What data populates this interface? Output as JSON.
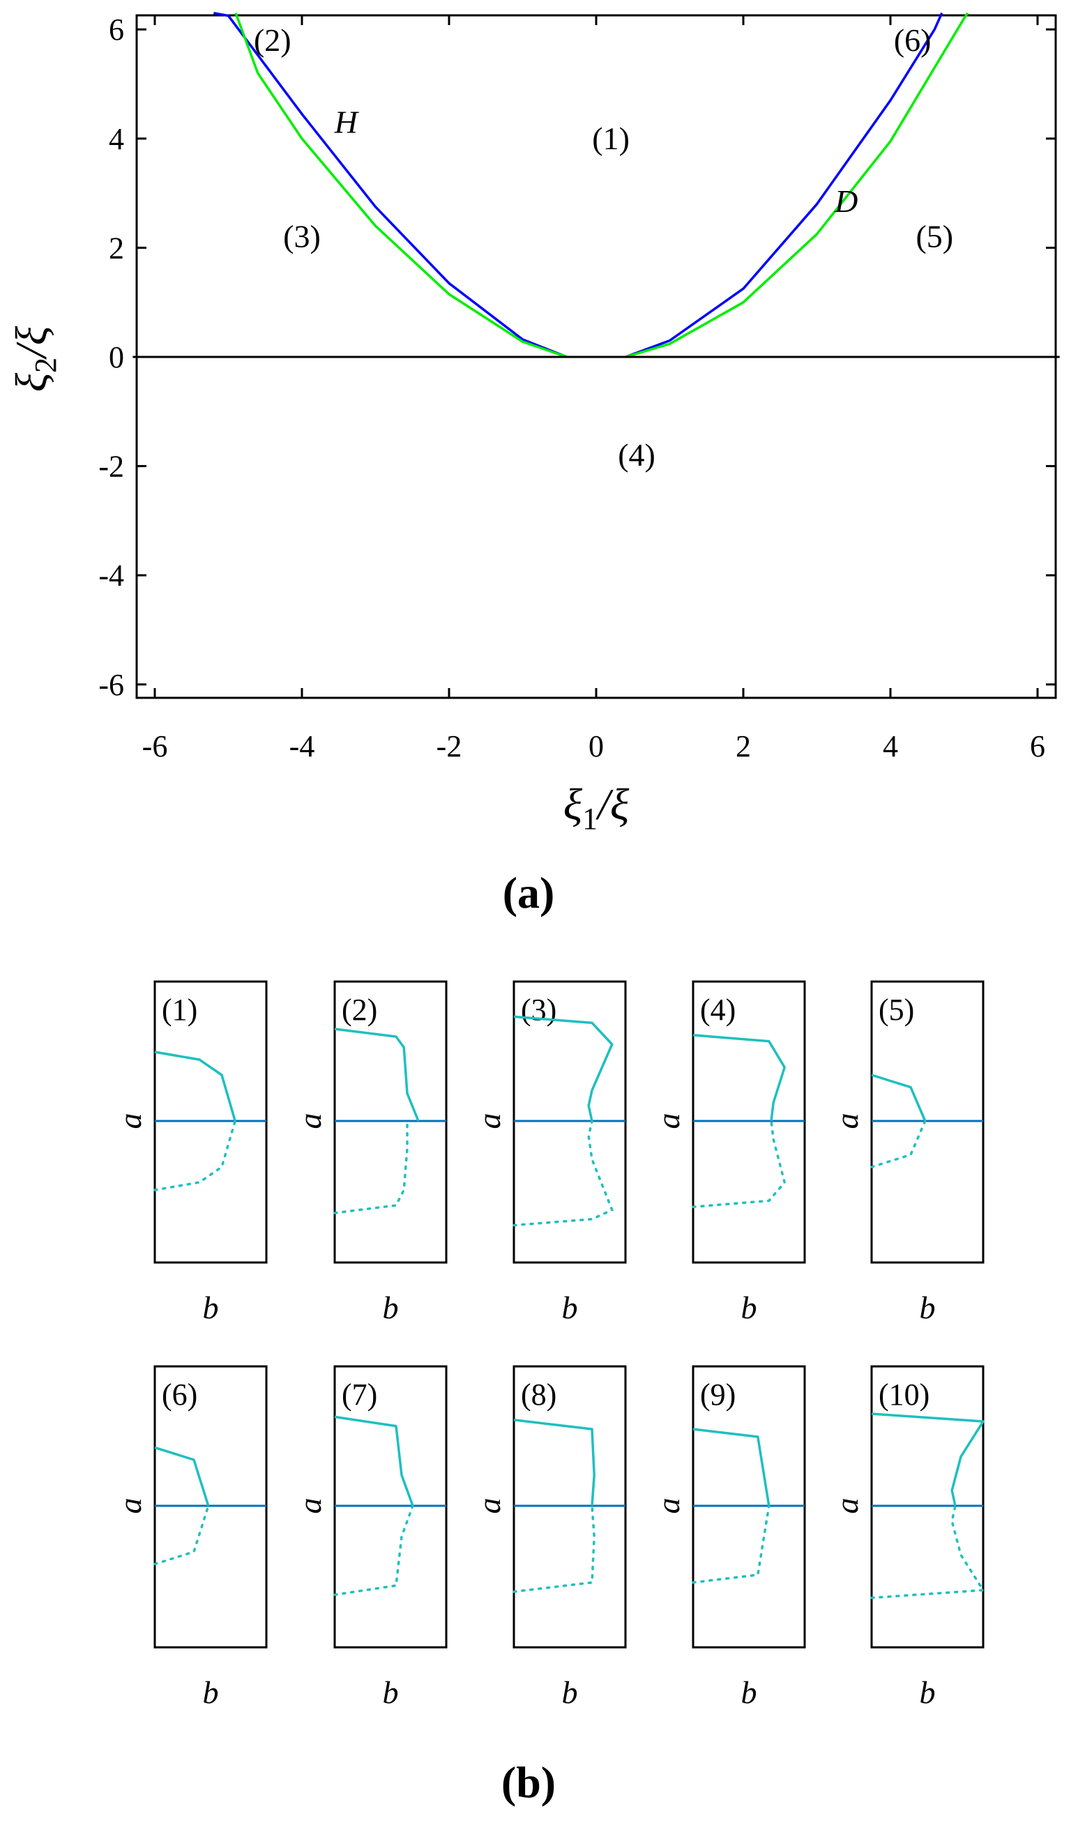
{
  "panel_a": {
    "caption": "(a)",
    "xlabel": {
      "sym": "ξ",
      "sub": "1",
      "suffix": "/ξ"
    },
    "ylabel": {
      "sym": "ξ",
      "sub": "2",
      "suffix": "/ξ"
    },
    "region_labels": [
      {
        "text": "(1)",
        "x": 0.2,
        "y": 4.0
      },
      {
        "text": "(2)",
        "x": -4.4,
        "y": 5.8
      },
      {
        "text": "(3)",
        "x": -4.0,
        "y": 2.2
      },
      {
        "text": "(4)",
        "x": 0.55,
        "y": -1.8
      },
      {
        "text": "(5)",
        "x": 4.6,
        "y": 2.2
      },
      {
        "text": "(6)",
        "x": 4.3,
        "y": 5.8
      }
    ],
    "curve_labels": [
      {
        "text": "H",
        "x": -3.4,
        "y": 4.3
      },
      {
        "text": "D",
        "x": 3.4,
        "y": 2.85
      }
    ]
  },
  "panel_b": {
    "caption": "(b)",
    "ylabel": "a",
    "xlabel": "b",
    "panels": [
      "(1)",
      "(2)",
      "(3)",
      "(4)",
      "(5)",
      "(6)",
      "(7)",
      "(8)",
      "(9)",
      "(10)"
    ]
  },
  "colors": {
    "H": "#0000ff",
    "D": "#00ee00",
    "axis_line": "#000000",
    "trivial": "#0072bd",
    "branch": "#1fbfbf"
  },
  "chart_data": [
    {
      "type": "line",
      "title": "",
      "xlabel": "ξ1/ξ",
      "ylabel": "ξ2/ξ",
      "xlim": [
        -6.3,
        6.3
      ],
      "ylim": [
        -6.3,
        6.3
      ],
      "xticks": [
        -6,
        -4,
        -2,
        0,
        2,
        4,
        6
      ],
      "yticks": [
        -6,
        -4,
        -2,
        0,
        2,
        4,
        6
      ],
      "series": [
        {
          "name": "H",
          "color": "#0000ff",
          "branches": [
            {
              "x": [
                -0.4,
                -1.0,
                -2.0,
                -3.0,
                -4.0,
                -5.0,
                -5.2
              ],
              "y": [
                0.0,
                0.32,
                1.35,
                2.75,
                4.45,
                6.25,
                6.3
              ]
            },
            {
              "x": [
                0.4,
                1.0,
                2.0,
                3.0,
                4.0,
                4.6,
                4.7
              ],
              "y": [
                0.0,
                0.3,
                1.25,
                2.8,
                4.7,
                6.0,
                6.3
              ]
            }
          ]
        },
        {
          "name": "D",
          "color": "#00ee00",
          "branches": [
            {
              "x": [
                -0.4,
                -1.0,
                -2.0,
                -3.0,
                -4.0,
                -4.6,
                -4.9
              ],
              "y": [
                0.0,
                0.28,
                1.15,
                2.4,
                4.0,
                5.2,
                6.3
              ]
            },
            {
              "x": [
                0.4,
                1.0,
                2.0,
                3.0,
                4.0,
                5.0,
                5.05
              ],
              "y": [
                0.0,
                0.24,
                1.0,
                2.25,
                3.95,
                6.2,
                6.3
              ]
            }
          ]
        },
        {
          "name": "",
          "color": "#000000",
          "x": [
            -6.3,
            6.3
          ],
          "y": [
            0,
            0
          ]
        }
      ],
      "grid": false,
      "legend": "none"
    },
    {
      "type": "line",
      "title": "",
      "xlabel": "b",
      "ylabel": "a",
      "note_units": "schematic amplitude–frequency response sketches, no numeric axes; a=0 is the horizontal line, positive a up",
      "panels": [
        {
          "label": "(1)",
          "stable": {
            "b": [
              0.0,
              0.4,
              0.6,
              0.72
            ],
            "a": [
              0.45,
              0.4,
              0.3,
              0.0
            ]
          },
          "unstable": {
            "b": [
              0.0,
              0.4,
              0.6,
              0.72
            ],
            "a": [
              -0.45,
              -0.4,
              -0.3,
              0.0
            ]
          }
        },
        {
          "label": "(2)",
          "stable": {
            "b": [
              0.0,
              0.55,
              0.62,
              0.65,
              0.75
            ],
            "a": [
              0.6,
              0.55,
              0.48,
              0.18,
              0.0
            ]
          },
          "unstable": {
            "b": [
              0.0,
              0.55,
              0.62,
              0.65,
              0.65
            ],
            "a": [
              -0.6,
              -0.55,
              -0.45,
              -0.18,
              0.0
            ]
          }
        },
        {
          "label": "(3)",
          "stable": {
            "b": [
              0.0,
              0.7,
              0.88,
              0.7,
              0.67,
              0.7
            ],
            "a": [
              0.68,
              0.64,
              0.5,
              0.2,
              0.1,
              0.0
            ]
          },
          "unstable": {
            "b": [
              0.0,
              0.7,
              0.88,
              0.7,
              0.67,
              0.7
            ],
            "a": [
              -0.68,
              -0.64,
              -0.58,
              -0.25,
              -0.1,
              0.0
            ]
          }
        },
        {
          "label": "(4)",
          "stable": {
            "b": [
              0.0,
              0.68,
              0.82,
              0.72,
              0.7
            ],
            "a": [
              0.56,
              0.52,
              0.35,
              0.12,
              0.0
            ]
          },
          "unstable": {
            "b": [
              0.0,
              0.68,
              0.82,
              0.72,
              0.7
            ],
            "a": [
              -0.56,
              -0.52,
              -0.4,
              -0.12,
              0.0
            ]
          }
        },
        {
          "label": "(5)",
          "stable": {
            "b": [
              0.0,
              0.35,
              0.48
            ],
            "a": [
              0.3,
              0.22,
              0.0
            ]
          },
          "unstable": {
            "b": [
              0.0,
              0.35,
              0.48
            ],
            "a": [
              -0.3,
              -0.22,
              0.0
            ]
          }
        },
        {
          "label": "(6)",
          "stable": {
            "b": [
              0.0,
              0.35,
              0.48
            ],
            "a": [
              0.38,
              0.3,
              0.0
            ]
          },
          "unstable": {
            "b": [
              0.0,
              0.35,
              0.48
            ],
            "a": [
              -0.38,
              -0.3,
              0.0
            ]
          }
        },
        {
          "label": "(7)",
          "stable": {
            "b": [
              0.0,
              0.55,
              0.6,
              0.7
            ],
            "a": [
              0.58,
              0.52,
              0.2,
              0.0
            ]
          },
          "unstable": {
            "b": [
              0.0,
              0.55,
              0.6,
              0.7
            ],
            "a": [
              -0.58,
              -0.52,
              -0.2,
              0.0
            ]
          }
        },
        {
          "label": "(8)",
          "stable": {
            "b": [
              0.0,
              0.7,
              0.72,
              0.7
            ],
            "a": [
              0.56,
              0.5,
              0.2,
              0.0
            ]
          },
          "unstable": {
            "b": [
              0.0,
              0.7,
              0.72,
              0.7
            ],
            "a": [
              -0.56,
              -0.5,
              -0.2,
              0.0
            ]
          }
        },
        {
          "label": "(9)",
          "stable": {
            "b": [
              0.0,
              0.58,
              0.68
            ],
            "a": [
              0.5,
              0.45,
              0.0
            ]
          },
          "unstable": {
            "b": [
              0.0,
              0.58,
              0.68
            ],
            "a": [
              -0.5,
              -0.45,
              0.0
            ]
          }
        },
        {
          "label": "(10)",
          "stable": {
            "b": [
              0.0,
              1.0,
              0.8,
              0.72,
              0.75
            ],
            "a": [
              0.6,
              0.55,
              0.32,
              0.1,
              0.0
            ]
          },
          "unstable": {
            "b": [
              0.0,
              1.0,
              0.8,
              0.72,
              0.75
            ],
            "a": [
              -0.6,
              -0.55,
              -0.32,
              -0.1,
              0.0
            ]
          }
        }
      ],
      "grid": false,
      "legend": "none"
    }
  ]
}
